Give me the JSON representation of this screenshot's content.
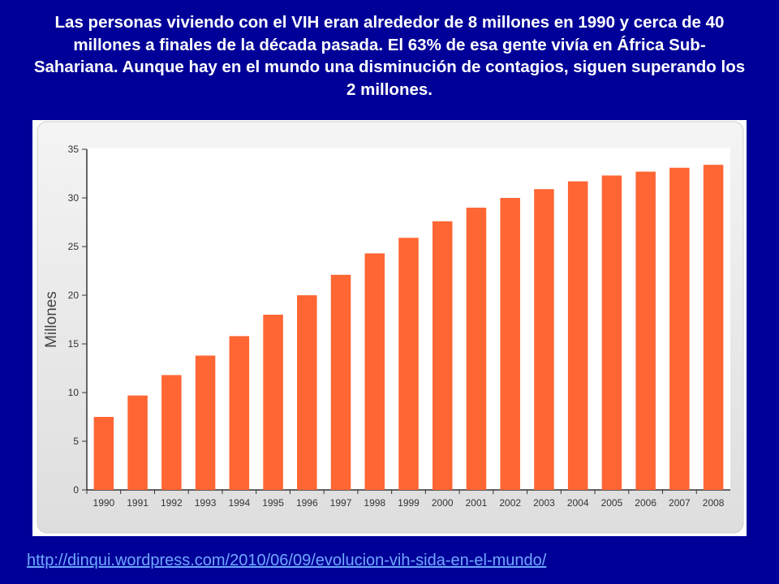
{
  "header": {
    "text": "Las personas viviendo con el VIH eran alrededor de 8 millones en 1990 y cerca de 40 millones a finales de la década pasada. El 63% de esa gente vivía en África Sub-Sahariana. Aunque hay en el mundo una disminución de contagios, siguen superando los 2 millones."
  },
  "footer": {
    "source_url": "http://dinqui.wordpress.com/2010/06/09/evolucion-vih-sida-en-el-mundo/"
  },
  "colors": {
    "background": "#000099",
    "bar": "#ff6633",
    "plot_bg": "#e9e9e9",
    "link": "#6fa8ff"
  },
  "chart_data": {
    "type": "bar",
    "title": "",
    "xlabel": "",
    "ylabel": "Millones",
    "ylim": [
      0,
      35
    ],
    "yticks": [
      0,
      5,
      10,
      15,
      20,
      25,
      30,
      35
    ],
    "grid": false,
    "categories": [
      "1990",
      "1991",
      "1992",
      "1993",
      "1994",
      "1995",
      "1996",
      "1997",
      "1998",
      "1999",
      "2000",
      "2001",
      "2002",
      "2003",
      "2004",
      "2005",
      "2006",
      "2007",
      "2008"
    ],
    "values": [
      7.5,
      9.7,
      11.8,
      13.8,
      15.8,
      18.0,
      20.0,
      22.1,
      24.3,
      25.9,
      27.6,
      29.0,
      30.0,
      30.9,
      31.7,
      32.3,
      32.7,
      33.1,
      33.4
    ]
  }
}
